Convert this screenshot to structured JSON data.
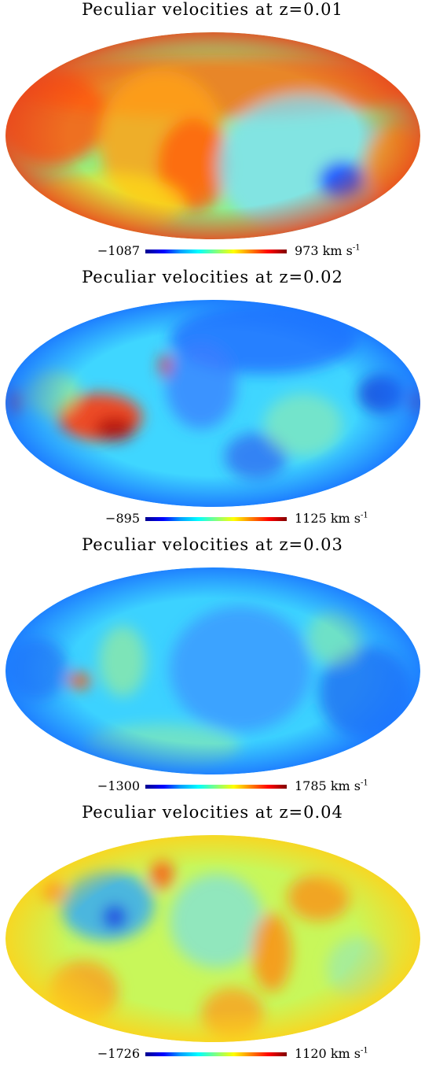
{
  "panels": [
    {
      "title": "Peculiar velocities at z=0.01",
      "min_label": "−1087",
      "max_label": "973",
      "unit": "km s",
      "unit_exp": "-1",
      "base_color": "#8cf08a",
      "edge_color": "#e9461d",
      "blobs": [
        {
          "cx": 270,
          "cy": 70,
          "rx": 260,
          "ry": 40,
          "color": "#ff6a12",
          "opacity": 0.8
        },
        {
          "cx": 60,
          "cy": 110,
          "rx": 70,
          "ry": 60,
          "color": "#ff5a10",
          "opacity": 0.85
        },
        {
          "cx": 200,
          "cy": 140,
          "rx": 80,
          "ry": 90,
          "color": "#ffa21a",
          "opacity": 0.85
        },
        {
          "cx": 240,
          "cy": 170,
          "rx": 45,
          "ry": 60,
          "color": "#ff5f10",
          "opacity": 0.8
        },
        {
          "cx": 380,
          "cy": 170,
          "rx": 110,
          "ry": 90,
          "color": "#7de0ff",
          "opacity": 0.75
        },
        {
          "cx": 430,
          "cy": 190,
          "rx": 30,
          "ry": 25,
          "color": "#1a4cff",
          "opacity": 0.9
        },
        {
          "cx": 500,
          "cy": 170,
          "rx": 40,
          "ry": 50,
          "color": "#ffb010",
          "opacity": 0.8
        },
        {
          "cx": 130,
          "cy": 220,
          "rx": 100,
          "ry": 40,
          "color": "#ffde1a",
          "opacity": 0.7
        }
      ]
    },
    {
      "title": "Peculiar velocities at z=0.02",
      "min_label": "−895",
      "max_label": "1125",
      "unit": "km s",
      "unit_exp": "-1",
      "base_color": "#3fd6ff",
      "edge_color": "#1870ff",
      "blobs": [
        {
          "cx": 330,
          "cy": 50,
          "rx": 120,
          "ry": 45,
          "color": "#1f6bff",
          "opacity": 0.8
        },
        {
          "cx": 120,
          "cy": 150,
          "rx": 55,
          "ry": 30,
          "color": "#ff3a10",
          "opacity": 0.9
        },
        {
          "cx": 140,
          "cy": 165,
          "rx": 25,
          "ry": 15,
          "color": "#b0120a",
          "opacity": 0.9
        },
        {
          "cx": 205,
          "cy": 85,
          "rx": 8,
          "ry": 15,
          "color": "#e62a10",
          "opacity": 0.9
        },
        {
          "cx": 10,
          "cy": 130,
          "rx": 12,
          "ry": 18,
          "color": "#e62a10",
          "opacity": 0.9
        },
        {
          "cx": 530,
          "cy": 130,
          "rx": 12,
          "ry": 18,
          "color": "#b0120a",
          "opacity": 0.9
        },
        {
          "cx": 480,
          "cy": 120,
          "rx": 30,
          "ry": 25,
          "color": "#1844d8",
          "opacity": 0.85
        },
        {
          "cx": 250,
          "cy": 110,
          "rx": 45,
          "ry": 55,
          "color": "#3b7cff",
          "opacity": 0.75
        },
        {
          "cx": 320,
          "cy": 200,
          "rx": 40,
          "ry": 30,
          "color": "#2c5ff0",
          "opacity": 0.7
        },
        {
          "cx": 380,
          "cy": 160,
          "rx": 50,
          "ry": 40,
          "color": "#9ff0a0",
          "opacity": 0.55
        },
        {
          "cx": 60,
          "cy": 120,
          "rx": 35,
          "ry": 30,
          "color": "#a8f080",
          "opacity": 0.6
        }
      ]
    },
    {
      "title": "Peculiar velocities at z=0.03",
      "min_label": "−1300",
      "max_label": "1785",
      "unit": "km s",
      "unit_exp": "-1",
      "base_color": "#3cd2ff",
      "edge_color": "#1a74ff",
      "blobs": [
        {
          "cx": 300,
          "cy": 130,
          "rx": 90,
          "ry": 80,
          "color": "#3c84ff",
          "opacity": 0.6
        },
        {
          "cx": 460,
          "cy": 160,
          "rx": 60,
          "ry": 60,
          "color": "#1e5ff0",
          "opacity": 0.7
        },
        {
          "cx": 40,
          "cy": 130,
          "rx": 40,
          "ry": 40,
          "color": "#1e5ff0",
          "opacity": 0.6
        },
        {
          "cx": 95,
          "cy": 145,
          "rx": 15,
          "ry": 10,
          "color": "#ff5a10",
          "opacity": 0.9
        },
        {
          "cx": 150,
          "cy": 120,
          "rx": 30,
          "ry": 45,
          "color": "#a8f088",
          "opacity": 0.6
        },
        {
          "cx": 200,
          "cy": 230,
          "rx": 100,
          "ry": 30,
          "color": "#98ee9c",
          "opacity": 0.55
        },
        {
          "cx": 420,
          "cy": 90,
          "rx": 35,
          "ry": 35,
          "color": "#a0f090",
          "opacity": 0.5
        }
      ]
    },
    {
      "title": "Peculiar velocities at z=0.04",
      "min_label": "−1726",
      "max_label": "1120",
      "unit": "km s",
      "unit_exp": "-1",
      "base_color": "#c8f75a",
      "edge_color": "#ffd21a",
      "blobs": [
        {
          "cx": 130,
          "cy": 90,
          "rx": 60,
          "ry": 45,
          "color": "#2aa6ff",
          "opacity": 0.8
        },
        {
          "cx": 140,
          "cy": 105,
          "rx": 15,
          "ry": 15,
          "color": "#1f3ee0",
          "opacity": 0.9
        },
        {
          "cx": 270,
          "cy": 110,
          "rx": 60,
          "ry": 60,
          "color": "#6cdcff",
          "opacity": 0.6
        },
        {
          "cx": 340,
          "cy": 150,
          "rx": 25,
          "ry": 50,
          "color": "#ff8a12",
          "opacity": 0.8
        },
        {
          "cx": 400,
          "cy": 80,
          "rx": 40,
          "ry": 30,
          "color": "#ff8a12",
          "opacity": 0.75
        },
        {
          "cx": 100,
          "cy": 200,
          "rx": 45,
          "ry": 40,
          "color": "#ff9a18",
          "opacity": 0.75
        },
        {
          "cx": 290,
          "cy": 230,
          "rx": 40,
          "ry": 35,
          "color": "#ff9a18",
          "opacity": 0.75
        },
        {
          "cx": 60,
          "cy": 70,
          "rx": 15,
          "ry": 15,
          "color": "#ff5010",
          "opacity": 0.85
        },
        {
          "cx": 200,
          "cy": 50,
          "rx": 15,
          "ry": 20,
          "color": "#ff5010",
          "opacity": 0.8
        },
        {
          "cx": 450,
          "cy": 170,
          "rx": 40,
          "ry": 40,
          "color": "#8ce6c8",
          "opacity": 0.55
        }
      ]
    }
  ]
}
